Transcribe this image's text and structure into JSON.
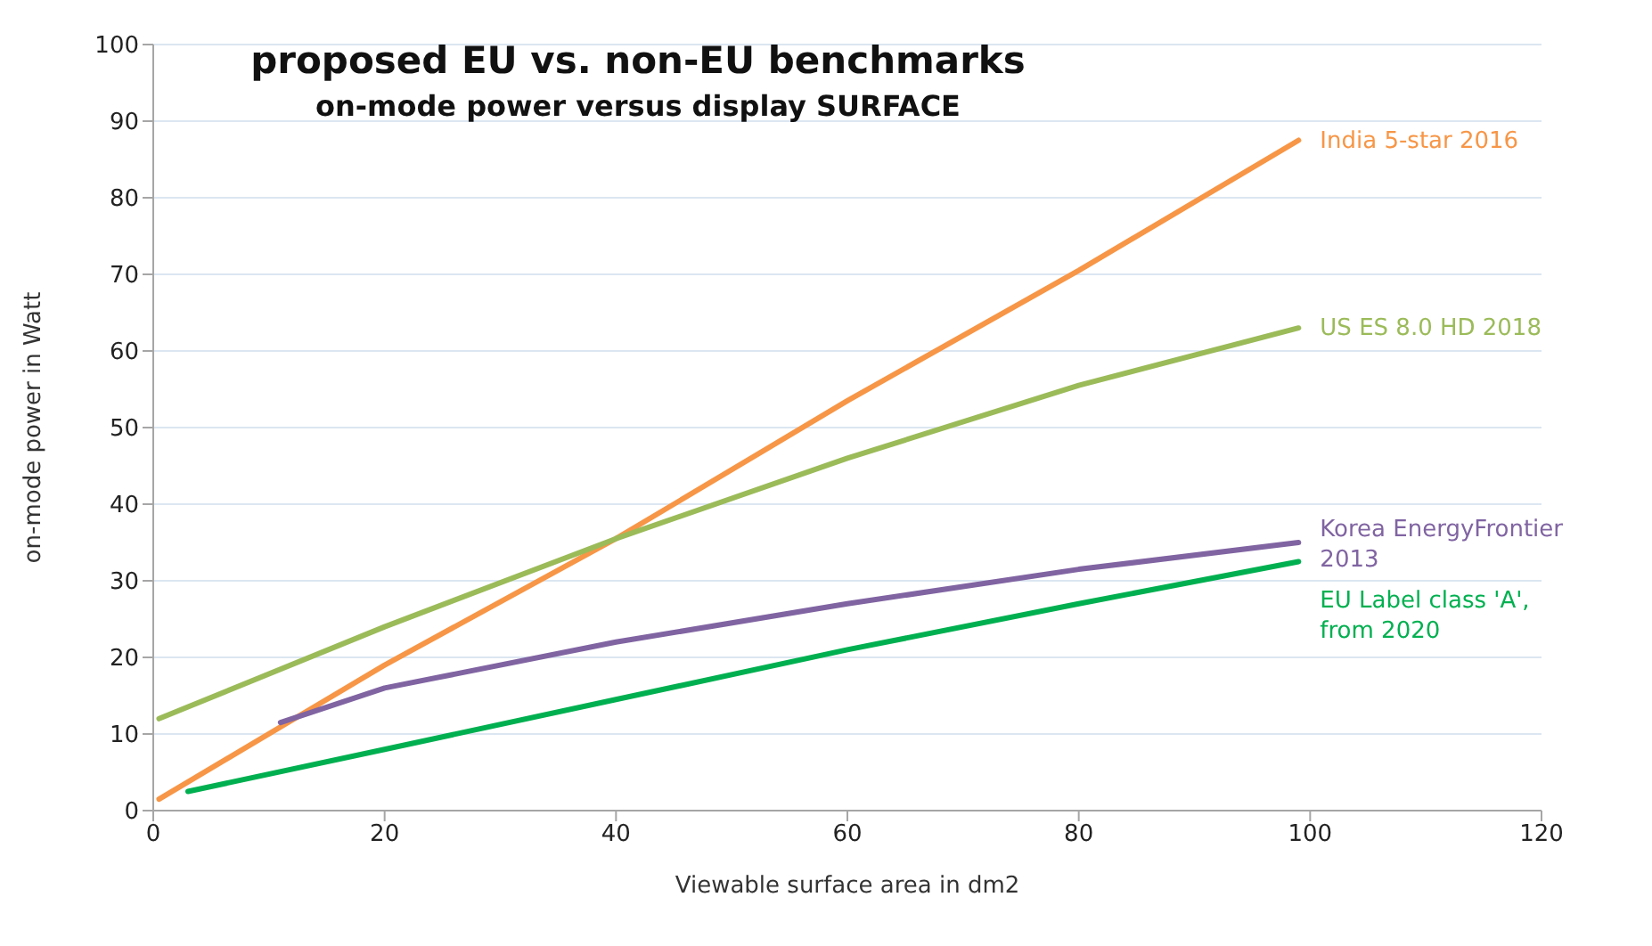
{
  "chart_data": {
    "type": "line",
    "title": "proposed EU vs. non-EU benchmarks",
    "subtitle": "on-mode power versus display SURFACE",
    "xlabel": "Viewable surface area in dm2",
    "ylabel": "on-mode power in Watt",
    "xlim": [
      0,
      120
    ],
    "xticks": [
      0,
      20,
      40,
      60,
      80,
      100,
      120
    ],
    "ylim": [
      0,
      100
    ],
    "yticks": [
      0,
      10,
      20,
      30,
      40,
      50,
      60,
      70,
      80,
      90,
      100
    ],
    "grid": "y",
    "marker": "none",
    "line_style": "solid",
    "series": [
      {
        "name": "India 5-star 2016",
        "color": "#f79646",
        "x": [
          0.5,
          20,
          40,
          60,
          80,
          99
        ],
        "values": [
          1.5,
          19,
          35.5,
          53.5,
          70.5,
          87.5
        ]
      },
      {
        "name": "US ES 8.0 HD 2018",
        "color": "#9bbb59",
        "x": [
          0.5,
          20,
          40,
          60,
          80,
          99
        ],
        "values": [
          12,
          24,
          35.5,
          46,
          55.5,
          63
        ]
      },
      {
        "name": "Korea EnergyFrontier 2013",
        "color": "#8064a2",
        "x": [
          11,
          20,
          40,
          60,
          80,
          99
        ],
        "values": [
          11.5,
          16,
          22,
          27,
          31.5,
          35
        ]
      },
      {
        "name": "EU Label class 'A', from 2020",
        "color": "#00b050",
        "x": [
          3,
          20,
          40,
          60,
          80,
          99
        ],
        "values": [
          2.5,
          8,
          14.5,
          21,
          27,
          32.5
        ]
      }
    ]
  }
}
